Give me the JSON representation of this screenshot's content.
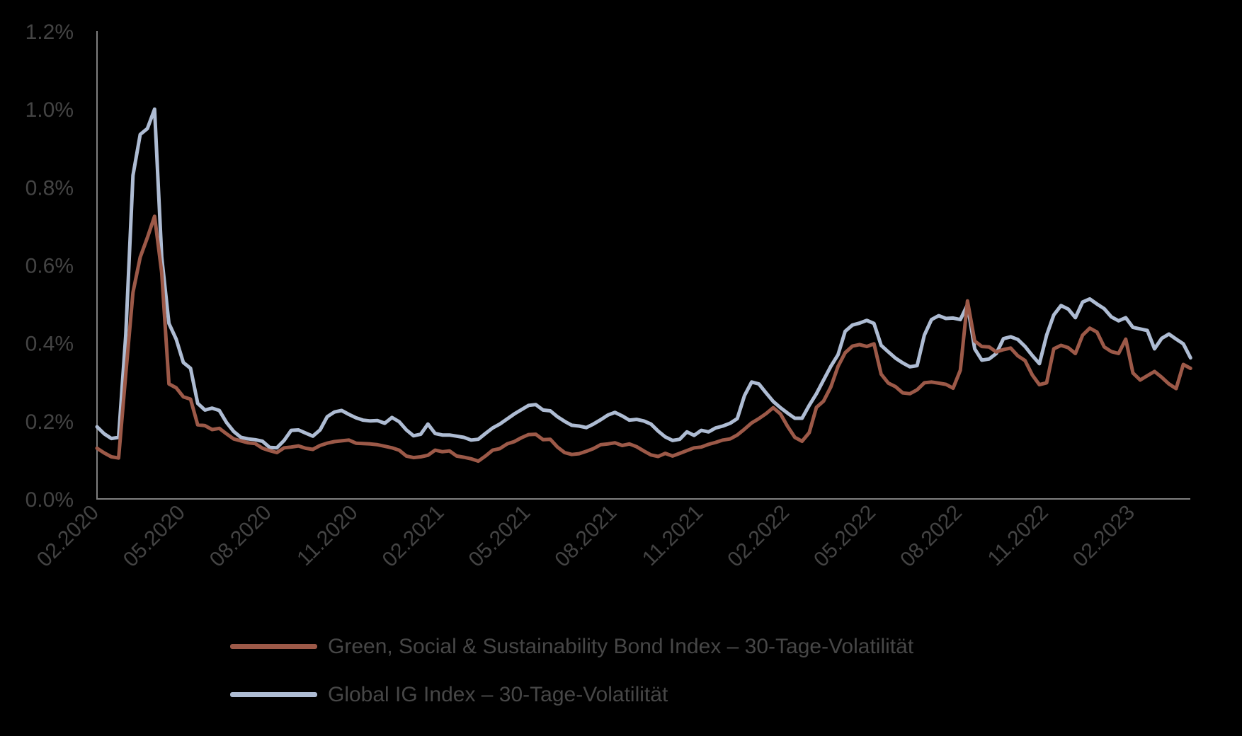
{
  "figure": {
    "background_color": "#000000",
    "axis_line_color": "#7f7f7f",
    "label_color": "#444444",
    "legend_text_color": "#474747"
  },
  "chart_data": {
    "type": "line",
    "title": "",
    "xlabel": "",
    "ylabel": "",
    "grid": false,
    "legend_position": "bottom",
    "y_axis": {
      "min": 0,
      "max": 1.2,
      "tick_values": [
        0,
        0.2,
        0.4,
        0.6,
        0.8,
        1.0,
        1.2
      ],
      "tick_labels": [
        "0.0%",
        "0.2%",
        "0.4%",
        "0.6%",
        "0.8%",
        "1.0%",
        "1.2%"
      ],
      "unit": "percent"
    },
    "x_axis": {
      "tick_labels": [
        "02.2020",
        "05.2020",
        "08.2020",
        "11.2020",
        "02.2021",
        "05.2021",
        "08.2021",
        "11.2021",
        "02.2022",
        "05.2022",
        "08.2022",
        "11.2022",
        "02.2023"
      ],
      "label_rotation_deg": -45,
      "months_between_ticks": 3,
      "data_start_label": "02.2020",
      "data_length_months": 38
    },
    "series": [
      {
        "name": "Green, Social & Sustainability Bond Index – 30-Tage-Volatilität",
        "color": "#9c5948",
        "unit": "%",
        "t_start_months": 0,
        "t_step_months": 0.25,
        "values": [
          0.13,
          0.118,
          0.108,
          0.105,
          0.32,
          0.53,
          0.62,
          0.67,
          0.725,
          0.58,
          0.295,
          0.285,
          0.262,
          0.256,
          0.19,
          0.188,
          0.178,
          0.181,
          0.167,
          0.154,
          0.149,
          0.144,
          0.142,
          0.13,
          0.124,
          0.119,
          0.131,
          0.133,
          0.136,
          0.13,
          0.127,
          0.137,
          0.143,
          0.147,
          0.149,
          0.151,
          0.143,
          0.142,
          0.141,
          0.139,
          0.135,
          0.131,
          0.125,
          0.11,
          0.106,
          0.108,
          0.112,
          0.125,
          0.121,
          0.123,
          0.11,
          0.107,
          0.103,
          0.097,
          0.11,
          0.125,
          0.129,
          0.141,
          0.147,
          0.157,
          0.165,
          0.166,
          0.152,
          0.153,
          0.133,
          0.119,
          0.114,
          0.116,
          0.122,
          0.129,
          0.139,
          0.141,
          0.144,
          0.137,
          0.141,
          0.134,
          0.123,
          0.113,
          0.109,
          0.117,
          0.11,
          0.117,
          0.124,
          0.131,
          0.133,
          0.14,
          0.145,
          0.151,
          0.154,
          0.164,
          0.179,
          0.195,
          0.206,
          0.219,
          0.234,
          0.218,
          0.186,
          0.158,
          0.148,
          0.17,
          0.235,
          0.251,
          0.287,
          0.34,
          0.375,
          0.392,
          0.396,
          0.391,
          0.398,
          0.32,
          0.297,
          0.288,
          0.272,
          0.27,
          0.28,
          0.298,
          0.3,
          0.297,
          0.294,
          0.284,
          0.33,
          0.508,
          0.405,
          0.391,
          0.39,
          0.377,
          0.383,
          0.387,
          0.367,
          0.355,
          0.318,
          0.293,
          0.298,
          0.385,
          0.394,
          0.388,
          0.373,
          0.42,
          0.438,
          0.428,
          0.39,
          0.378,
          0.373,
          0.41,
          0.323,
          0.305,
          0.316,
          0.327,
          0.312,
          0.295,
          0.283,
          0.345,
          0.335
        ]
      },
      {
        "name": "Global IG Index – 30-Tage-Volatilität",
        "color": "#aebcd3",
        "unit": "%",
        "t_start_months": 0,
        "t_step_months": 0.25,
        "values": [
          0.185,
          0.167,
          0.155,
          0.158,
          0.42,
          0.83,
          0.935,
          0.95,
          1.0,
          0.62,
          0.45,
          0.41,
          0.35,
          0.335,
          0.245,
          0.228,
          0.233,
          0.227,
          0.196,
          0.173,
          0.158,
          0.154,
          0.152,
          0.148,
          0.132,
          0.131,
          0.15,
          0.176,
          0.177,
          0.169,
          0.161,
          0.177,
          0.211,
          0.223,
          0.227,
          0.217,
          0.208,
          0.202,
          0.2,
          0.201,
          0.194,
          0.209,
          0.198,
          0.177,
          0.162,
          0.166,
          0.192,
          0.168,
          0.164,
          0.164,
          0.161,
          0.158,
          0.151,
          0.153,
          0.168,
          0.182,
          0.192,
          0.205,
          0.218,
          0.229,
          0.24,
          0.242,
          0.228,
          0.226,
          0.211,
          0.199,
          0.189,
          0.187,
          0.183,
          0.192,
          0.203,
          0.215,
          0.222,
          0.213,
          0.202,
          0.204,
          0.2,
          0.192,
          0.174,
          0.159,
          0.15,
          0.153,
          0.172,
          0.163,
          0.176,
          0.172,
          0.182,
          0.187,
          0.194,
          0.206,
          0.265,
          0.3,
          0.295,
          0.272,
          0.25,
          0.234,
          0.22,
          0.207,
          0.207,
          0.24,
          0.27,
          0.305,
          0.34,
          0.37,
          0.43,
          0.446,
          0.451,
          0.458,
          0.45,
          0.394,
          0.377,
          0.361,
          0.349,
          0.339,
          0.342,
          0.42,
          0.46,
          0.47,
          0.463,
          0.464,
          0.46,
          0.498,
          0.385,
          0.356,
          0.359,
          0.373,
          0.411,
          0.416,
          0.409,
          0.391,
          0.368,
          0.347,
          0.42,
          0.472,
          0.496,
          0.487,
          0.465,
          0.505,
          0.513,
          0.5,
          0.488,
          0.467,
          0.457,
          0.465,
          0.44,
          0.436,
          0.432,
          0.385,
          0.412,
          0.423,
          0.41,
          0.398,
          0.362
        ]
      }
    ]
  },
  "legend": {
    "items": [
      {
        "label": "Green, Social & Sustainability Bond Index – 30-Tage-Volatilität"
      },
      {
        "label": "Global IG Index – 30-Tage-Volatilität"
      }
    ]
  }
}
